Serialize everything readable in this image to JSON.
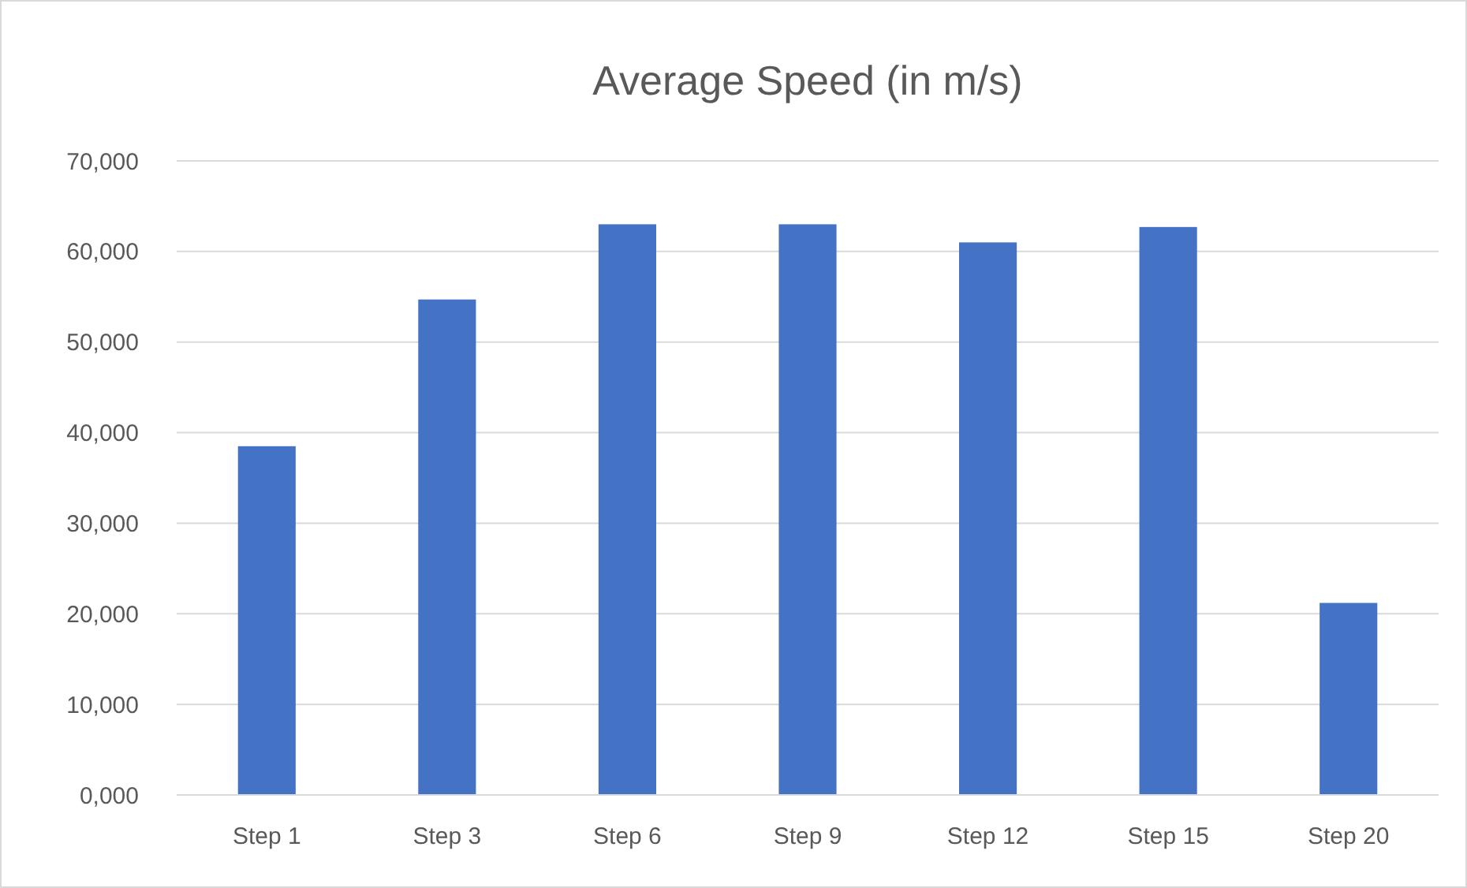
{
  "chart_data": {
    "type": "bar",
    "title": "Average Speed (in m/s)",
    "categories": [
      "Step 1",
      "Step 3",
      "Step 6",
      "Step 9",
      "Step 12",
      "Step 15",
      "Step 20"
    ],
    "values": [
      38500,
      54700,
      63000,
      63000,
      61000,
      62700,
      21200
    ],
    "color": "#4472c4",
    "ylim": [
      0,
      70000
    ],
    "yticks": [
      {
        "value": 0,
        "label": "0,000"
      },
      {
        "value": 10000,
        "label": "10,000"
      },
      {
        "value": 20000,
        "label": "20,000"
      },
      {
        "value": 30000,
        "label": "30,000"
      },
      {
        "value": 40000,
        "label": "40,000"
      },
      {
        "value": 50000,
        "label": "50,000"
      },
      {
        "value": 60000,
        "label": "60,000"
      },
      {
        "value": 70000,
        "label": "70,000"
      }
    ],
    "grid": "y"
  }
}
